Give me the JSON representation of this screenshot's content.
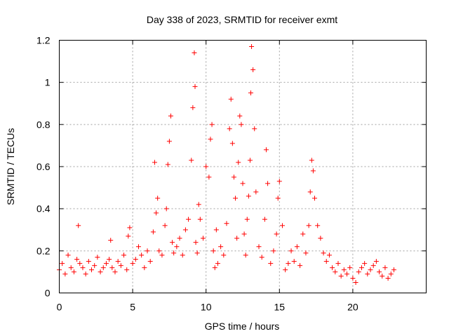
{
  "chart_data": {
    "type": "scatter",
    "title": "Day 338 of 2023, SRMTID for receiver exmt",
    "xlabel": "GPS time / hours",
    "ylabel": "SRMTID / TECUs",
    "xlim": [
      0,
      25
    ],
    "ylim": [
      0,
      1.2
    ],
    "x_ticks": [
      0,
      5,
      10,
      15,
      20
    ],
    "x_tick_labels": [
      "0",
      "5",
      "10",
      "15",
      "20"
    ],
    "y_ticks": [
      0,
      0.2,
      0.4,
      0.6,
      0.8,
      1.0,
      1.2
    ],
    "y_tick_labels": [
      "0",
      "0.2",
      "0.4",
      "0.6",
      "0.8",
      "1",
      "1.2"
    ],
    "grid": true,
    "marker": "plus",
    "color": "#ff0000",
    "series": [
      {
        "name": "SRMTID",
        "x": [
          0.0,
          0.2,
          0.4,
          0.6,
          0.8,
          1.0,
          1.2,
          1.3,
          1.4,
          1.6,
          1.8,
          2.0,
          2.2,
          2.4,
          2.6,
          2.8,
          3.0,
          3.2,
          3.4,
          3.5,
          3.6,
          3.8,
          4.0,
          4.2,
          4.4,
          4.6,
          4.7,
          4.8,
          5.0,
          5.2,
          5.4,
          5.6,
          5.8,
          6.0,
          6.2,
          6.4,
          6.5,
          6.6,
          6.7,
          6.8,
          7.0,
          7.2,
          7.3,
          7.4,
          7.5,
          7.6,
          7.7,
          7.8,
          8.0,
          8.2,
          8.4,
          8.6,
          8.8,
          9.0,
          9.1,
          9.2,
          9.25,
          9.3,
          9.4,
          9.5,
          9.6,
          9.8,
          10.0,
          10.2,
          10.3,
          10.4,
          10.5,
          10.6,
          10.7,
          10.8,
          11.0,
          11.2,
          11.4,
          11.6,
          11.7,
          11.8,
          11.9,
          12.0,
          12.1,
          12.2,
          12.3,
          12.4,
          12.5,
          12.6,
          12.7,
          12.8,
          12.9,
          13.0,
          13.05,
          13.1,
          13.2,
          13.3,
          13.4,
          13.6,
          13.8,
          14.0,
          14.1,
          14.2,
          14.4,
          14.6,
          14.8,
          14.9,
          15.0,
          15.2,
          15.4,
          15.6,
          15.8,
          16.0,
          16.2,
          16.4,
          16.6,
          16.8,
          17.0,
          17.1,
          17.2,
          17.3,
          17.4,
          17.6,
          17.8,
          18.0,
          18.2,
          18.4,
          18.6,
          18.8,
          19.0,
          19.2,
          19.4,
          19.6,
          19.8,
          20.0,
          20.2,
          20.4,
          20.6,
          20.8,
          21.0,
          21.2,
          21.4,
          21.6,
          21.8,
          22.0,
          22.2,
          22.4,
          22.6,
          22.8
        ],
        "y": [
          0.11,
          0.14,
          0.09,
          0.18,
          0.12,
          0.1,
          0.16,
          0.32,
          0.14,
          0.12,
          0.09,
          0.15,
          0.11,
          0.13,
          0.17,
          0.1,
          0.12,
          0.14,
          0.16,
          0.25,
          0.12,
          0.1,
          0.15,
          0.13,
          0.18,
          0.11,
          0.27,
          0.31,
          0.14,
          0.16,
          0.22,
          0.18,
          0.12,
          0.2,
          0.15,
          0.29,
          0.62,
          0.38,
          0.45,
          0.2,
          0.18,
          0.32,
          0.4,
          0.61,
          0.72,
          0.84,
          0.24,
          0.19,
          0.22,
          0.26,
          0.18,
          0.3,
          0.35,
          0.63,
          0.88,
          1.14,
          0.98,
          0.24,
          0.19,
          0.42,
          0.35,
          0.26,
          0.6,
          0.55,
          0.73,
          0.8,
          0.2,
          0.12,
          0.3,
          0.14,
          0.22,
          0.18,
          0.33,
          0.78,
          0.92,
          0.71,
          0.55,
          0.45,
          0.26,
          0.62,
          0.84,
          0.8,
          0.52,
          0.28,
          0.18,
          0.35,
          0.46,
          0.63,
          0.95,
          1.17,
          1.06,
          0.78,
          0.48,
          0.22,
          0.17,
          0.35,
          0.68,
          0.52,
          0.14,
          0.2,
          0.28,
          0.45,
          0.53,
          0.32,
          0.11,
          0.14,
          0.2,
          0.15,
          0.22,
          0.13,
          0.28,
          0.19,
          0.32,
          0.48,
          0.63,
          0.58,
          0.45,
          0.32,
          0.26,
          0.19,
          0.15,
          0.18,
          0.12,
          0.1,
          0.14,
          0.08,
          0.11,
          0.09,
          0.12,
          0.07,
          0.05,
          0.1,
          0.12,
          0.14,
          0.09,
          0.11,
          0.13,
          0.15,
          0.1,
          0.08,
          0.12,
          0.07,
          0.09,
          0.11
        ]
      }
    ]
  }
}
